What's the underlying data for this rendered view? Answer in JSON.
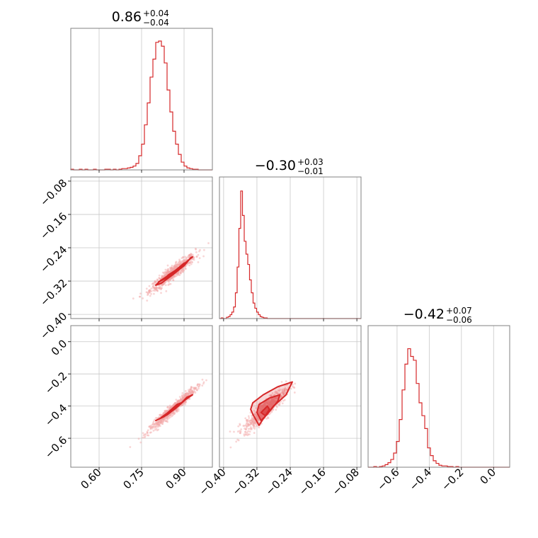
{
  "chart_data": {
    "type": "corner",
    "color": "#d62728",
    "parameters": [
      {
        "title": {
          "median": "0.86",
          "plus": "+0.04",
          "minus": "−0.04"
        },
        "range": [
          0.5,
          1.0
        ],
        "ticks": [
          0.6,
          0.75,
          0.9
        ],
        "tick_labels": [
          "0.60",
          "0.75",
          "0.90"
        ]
      },
      {
        "title": {
          "median": "−0.30",
          "plus": "+0.03",
          "minus": "−0.01"
        },
        "range": [
          -0.41,
          -0.07
        ],
        "ticks": [
          -0.4,
          -0.32,
          -0.24,
          -0.16,
          -0.08
        ],
        "tick_labels": [
          "−0.40",
          "−0.32",
          "−0.24",
          "−0.16",
          "−0.08"
        ]
      },
      {
        "title": {
          "median": "−0.42",
          "plus": "+0.07",
          "minus": "−0.06"
        },
        "range": [
          -0.78,
          0.1
        ],
        "ticks": [
          -0.6,
          -0.4,
          -0.2,
          0.0
        ],
        "tick_labels": [
          "−0.6",
          "−0.4",
          "−0.2",
          "0.0"
        ]
      }
    ],
    "histograms": [
      {
        "parameter": 0,
        "bin_start": 0.5,
        "bin_width": 0.01,
        "counts": [
          0.005,
          0,
          0,
          0.005,
          0,
          0.005,
          0,
          0,
          0.005,
          0,
          0,
          0,
          0.005,
          0.005,
          0,
          0.005,
          0,
          0.005,
          0.01,
          0.01,
          0.015,
          0.02,
          0.03,
          0.05,
          0.11,
          0.2,
          0.35,
          0.52,
          0.72,
          0.86,
          0.99,
          1.0,
          0.96,
          0.83,
          0.62,
          0.45,
          0.3,
          0.2,
          0.12,
          0.06,
          0.03,
          0.015,
          0.01,
          0.005,
          0.005,
          0,
          0,
          0,
          0,
          0
        ]
      },
      {
        "parameter": 1,
        "bin_start": -0.41,
        "bin_width": 0.00425,
        "counts": [
          0,
          0.005,
          0,
          0,
          0.01,
          0.015,
          0.03,
          0.05,
          0.09,
          0.2,
          0.4,
          0.7,
          0.99,
          0.8,
          0.6,
          0.5,
          0.42,
          0.3,
          0.2,
          0.12,
          0.08,
          0.05,
          0.03,
          0.015,
          0.01,
          0.005,
          0.005,
          0,
          0,
          0,
          0,
          0,
          0,
          0,
          0,
          0,
          0,
          0,
          0,
          0,
          0,
          0,
          0,
          0,
          0,
          0,
          0,
          0,
          0,
          0,
          0,
          0,
          0,
          0,
          0,
          0,
          0,
          0,
          0,
          0,
          0,
          0,
          0,
          0,
          0,
          0,
          0,
          0,
          0,
          0,
          0,
          0,
          0,
          0,
          0,
          0,
          0,
          0,
          0,
          0
        ]
      },
      {
        "parameter": 2,
        "bin_start": -0.78,
        "bin_width": 0.0176,
        "counts": [
          0,
          0,
          0.005,
          0,
          0.005,
          0.01,
          0.02,
          0.035,
          0.06,
          0.11,
          0.2,
          0.37,
          0.6,
          0.8,
          0.92,
          0.86,
          0.83,
          0.65,
          0.5,
          0.4,
          0.3,
          0.15,
          0.09,
          0.05,
          0.03,
          0.015,
          0.01,
          0.01,
          0.005,
          0.005,
          0,
          0.005,
          0,
          0,
          0,
          0,
          0,
          0,
          0,
          0,
          0,
          0,
          0,
          0,
          0,
          0,
          0,
          0,
          0,
          0
        ]
      }
    ],
    "scatter": [
      {
        "x_parameter": 0,
        "y_parameter": 1,
        "center": [
          0.86,
          -0.3
        ],
        "sd": [
          0.04,
          0.022
        ],
        "correlation": 0.93,
        "n_samples": 700,
        "contours": [
          [
            [
              0.8,
              -0.33
            ],
            [
              0.82,
              -0.325
            ],
            [
              0.86,
              -0.305
            ],
            [
              0.9,
              -0.283
            ],
            [
              0.925,
              -0.263
            ],
            [
              0.93,
              -0.262
            ],
            [
              0.915,
              -0.27
            ],
            [
              0.885,
              -0.288
            ],
            [
              0.85,
              -0.307
            ],
            [
              0.815,
              -0.32
            ],
            [
              0.8,
              -0.33
            ]
          ],
          [
            [
              0.81,
              -0.322
            ],
            [
              0.84,
              -0.312
            ],
            [
              0.88,
              -0.292
            ],
            [
              0.91,
              -0.275
            ],
            [
              0.9,
              -0.277
            ],
            [
              0.865,
              -0.297
            ],
            [
              0.83,
              -0.313
            ],
            [
              0.81,
              -0.322
            ]
          ],
          [
            [
              0.835,
              -0.312
            ],
            [
              0.865,
              -0.3
            ],
            [
              0.89,
              -0.287
            ],
            [
              0.875,
              -0.292
            ],
            [
              0.845,
              -0.305
            ],
            [
              0.835,
              -0.312
            ]
          ]
        ]
      },
      {
        "x_parameter": 0,
        "y_parameter": 2,
        "center": [
          0.86,
          -0.42
        ],
        "sd": [
          0.04,
          0.065
        ],
        "correlation": 0.97,
        "n_samples": 700,
        "contours": [
          [
            [
              0.8,
              -0.49
            ],
            [
              0.84,
              -0.455
            ],
            [
              0.88,
              -0.4
            ],
            [
              0.91,
              -0.345
            ],
            [
              0.93,
              -0.33
            ],
            [
              0.905,
              -0.36
            ],
            [
              0.87,
              -0.415
            ],
            [
              0.83,
              -0.465
            ],
            [
              0.8,
              -0.49
            ]
          ],
          [
            [
              0.82,
              -0.47
            ],
            [
              0.855,
              -0.43
            ],
            [
              0.89,
              -0.38
            ],
            [
              0.875,
              -0.39
            ],
            [
              0.84,
              -0.445
            ],
            [
              0.82,
              -0.47
            ]
          ]
        ]
      },
      {
        "x_parameter": 1,
        "y_parameter": 2,
        "center": [
          -0.3,
          -0.42
        ],
        "sd": [
          0.025,
          0.065
        ],
        "correlation": 0.9,
        "n_samples": 700,
        "contours": [
          [
            [
              -0.33,
              -0.45
            ],
            [
              -0.315,
              -0.52
            ],
            [
              -0.305,
              -0.48
            ],
            [
              -0.28,
              -0.4
            ],
            [
              -0.25,
              -0.33
            ],
            [
              -0.235,
              -0.25
            ],
            [
              -0.27,
              -0.28
            ],
            [
              -0.305,
              -0.33
            ],
            [
              -0.33,
              -0.38
            ],
            [
              -0.335,
              -0.42
            ],
            [
              -0.33,
              -0.45
            ]
          ],
          [
            [
              -0.32,
              -0.44
            ],
            [
              -0.31,
              -0.49
            ],
            [
              -0.295,
              -0.45
            ],
            [
              -0.27,
              -0.37
            ],
            [
              -0.265,
              -0.33
            ],
            [
              -0.29,
              -0.35
            ],
            [
              -0.315,
              -0.39
            ],
            [
              -0.32,
              -0.44
            ]
          ],
          [
            [
              -0.31,
              -0.44
            ],
            [
              -0.3,
              -0.46
            ],
            [
              -0.29,
              -0.42
            ],
            [
              -0.295,
              -0.4
            ],
            [
              -0.31,
              -0.44
            ]
          ]
        ]
      }
    ]
  }
}
